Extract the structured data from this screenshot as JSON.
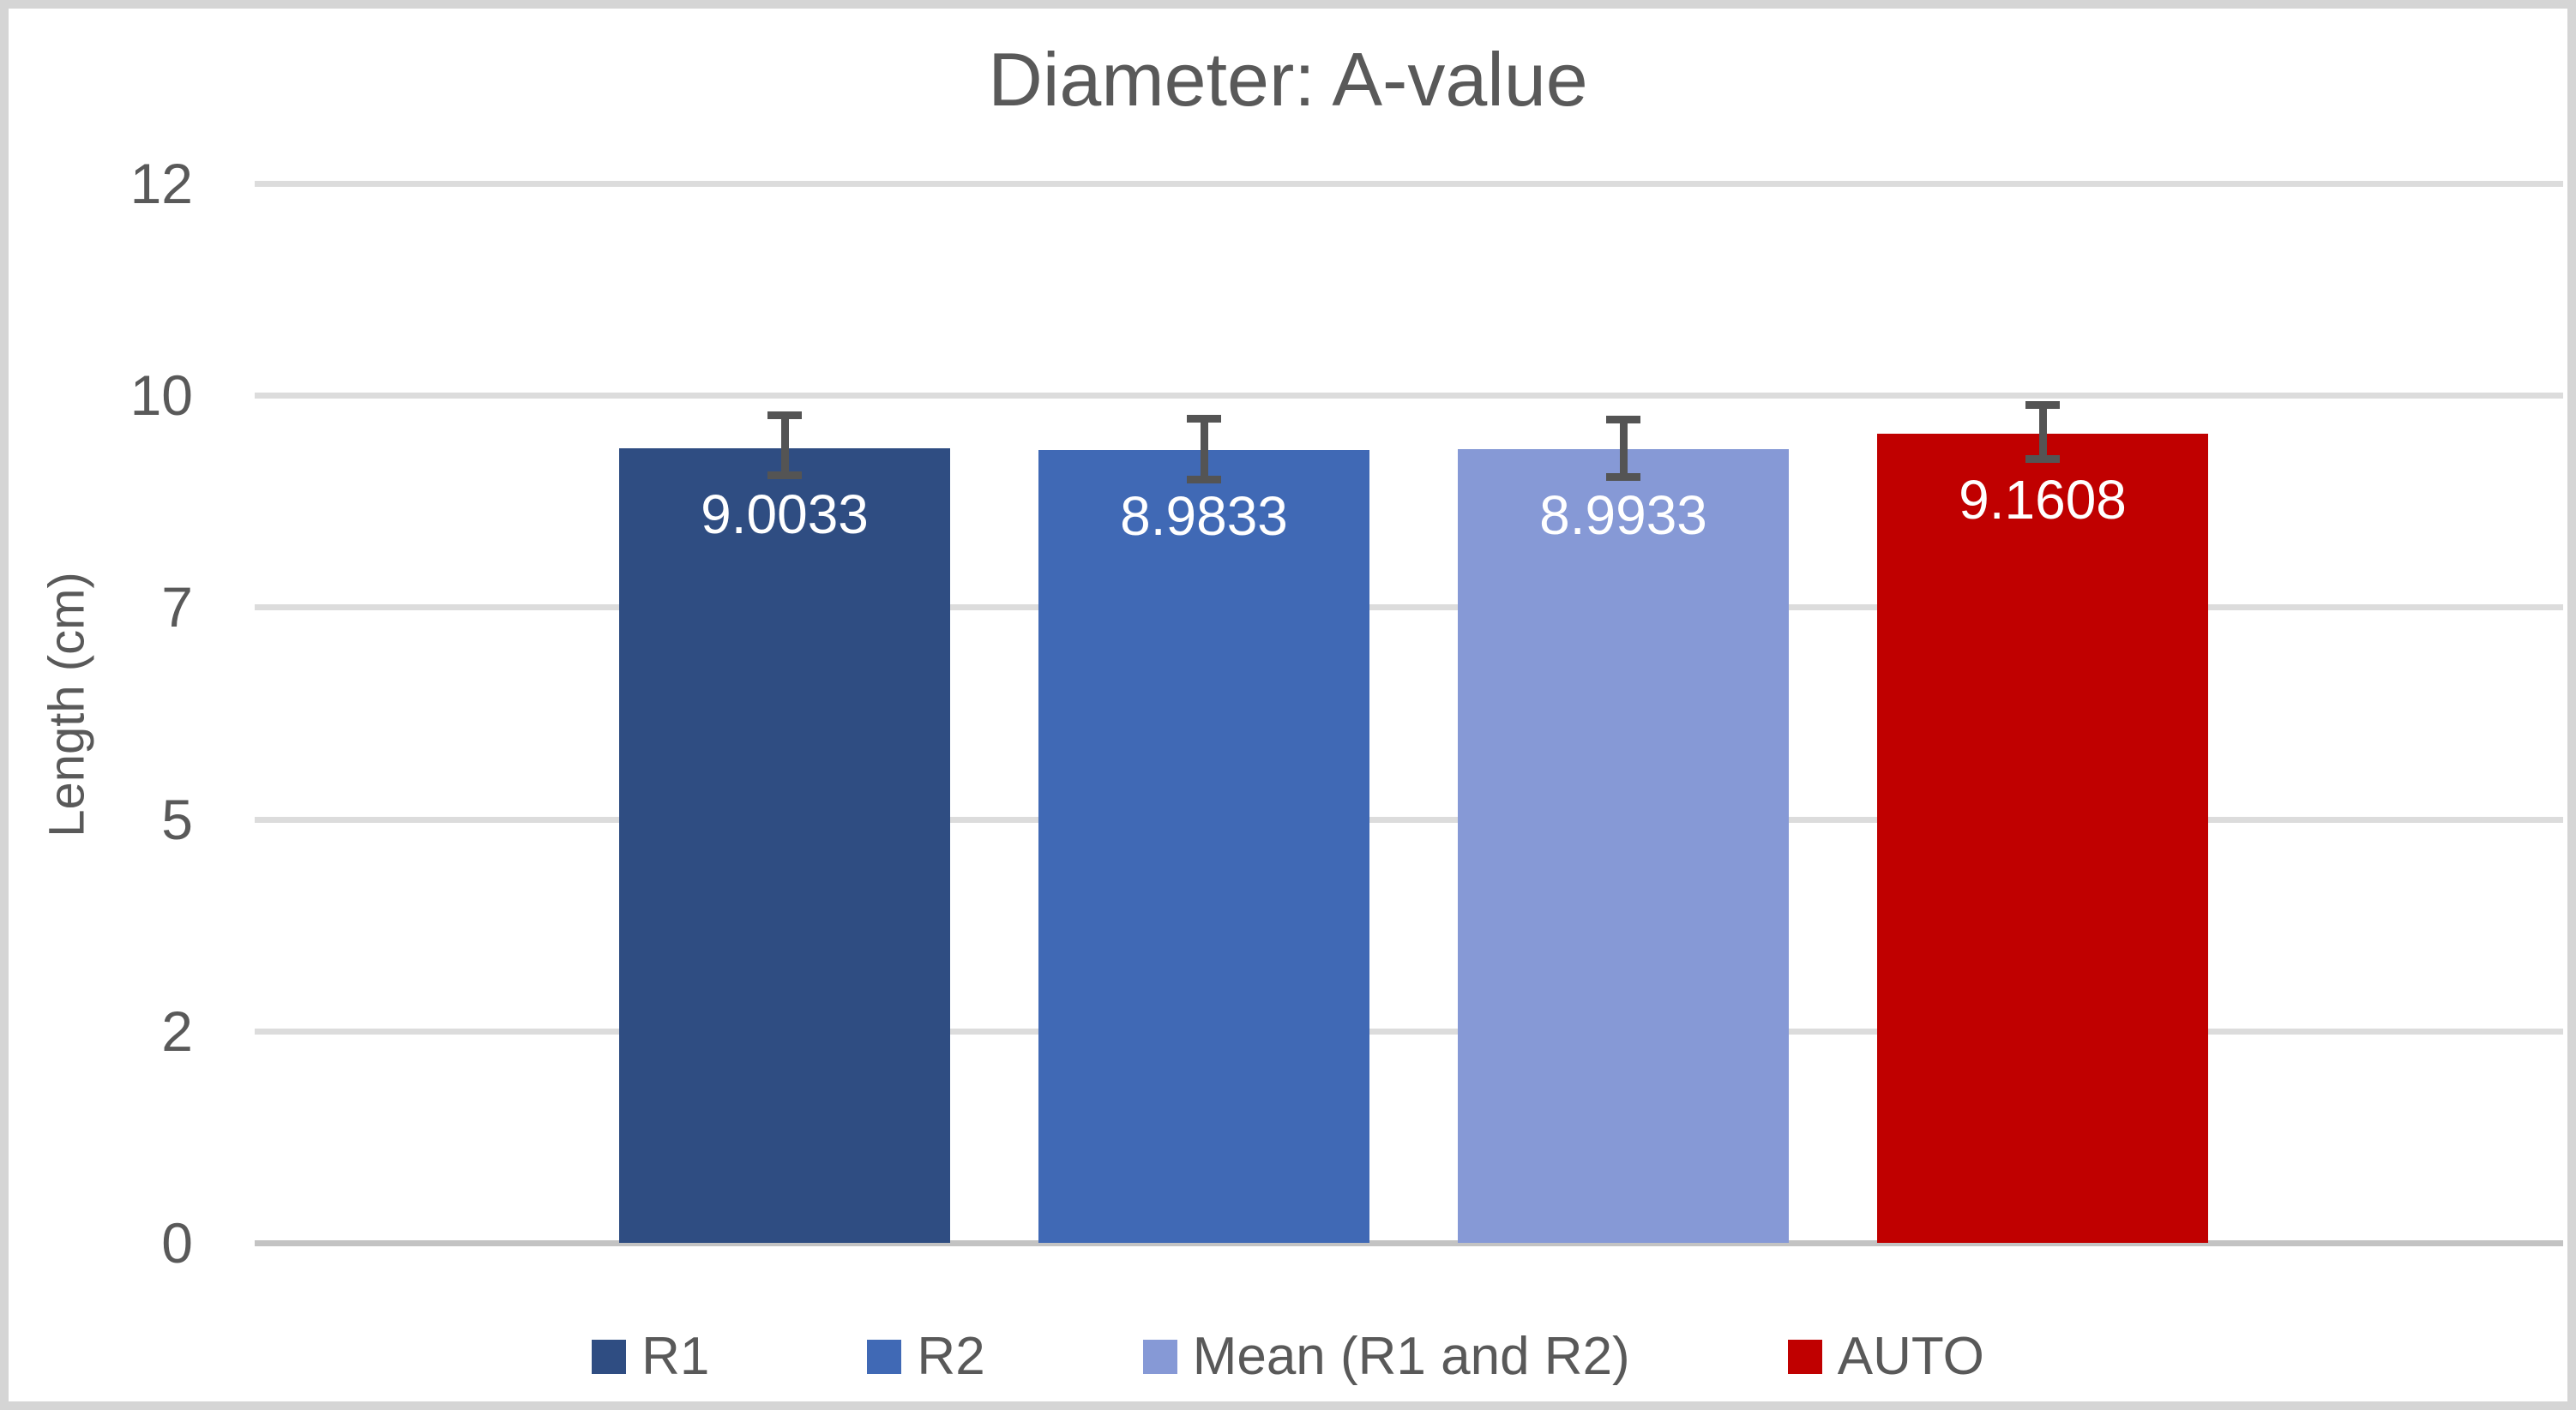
{
  "chart_data": {
    "type": "bar",
    "title": "Diameter: A-value",
    "xlabel": "",
    "ylabel": "Length (cm)",
    "ylim": [
      0,
      12
    ],
    "grid": true,
    "legend_position": "bottom",
    "yticks": [
      {
        "label": "12",
        "value": 12
      },
      {
        "label": "10",
        "value": 9.6
      },
      {
        "label": "7",
        "value": 7.2
      },
      {
        "label": "5",
        "value": 4.8
      },
      {
        "label": "2",
        "value": 2.4
      },
      {
        "label": "0",
        "value": 0
      }
    ],
    "categories": [
      "R1",
      "R2",
      "Mean (R1 and R2)",
      "AUTO"
    ],
    "series": [
      {
        "name": "R1",
        "value": 9.0033,
        "label": "9.0033",
        "color": "#2F4D82",
        "error_up": 0.41,
        "error_down": 0.35
      },
      {
        "name": "R2",
        "value": 8.9833,
        "label": "8.9833",
        "color": "#4069B5",
        "error_up": 0.4,
        "error_down": 0.38
      },
      {
        "name": "Mean (R1 and R2)",
        "value": 8.9933,
        "label": "8.9933",
        "color": "#8699D6",
        "error_up": 0.38,
        "error_down": 0.36
      },
      {
        "name": "AUTO",
        "value": 9.1608,
        "label": "9.1608",
        "color": "#C00000",
        "error_up": 0.37,
        "error_down": 0.33
      }
    ],
    "colors": {
      "text": "#595959",
      "gridline": "#dcdcdc",
      "axis_line": "#c3c3c3",
      "error_bar": "#545454",
      "data_label": "#ffffff",
      "frame_border": "#d5d5d5",
      "background": "#ffffff"
    }
  }
}
